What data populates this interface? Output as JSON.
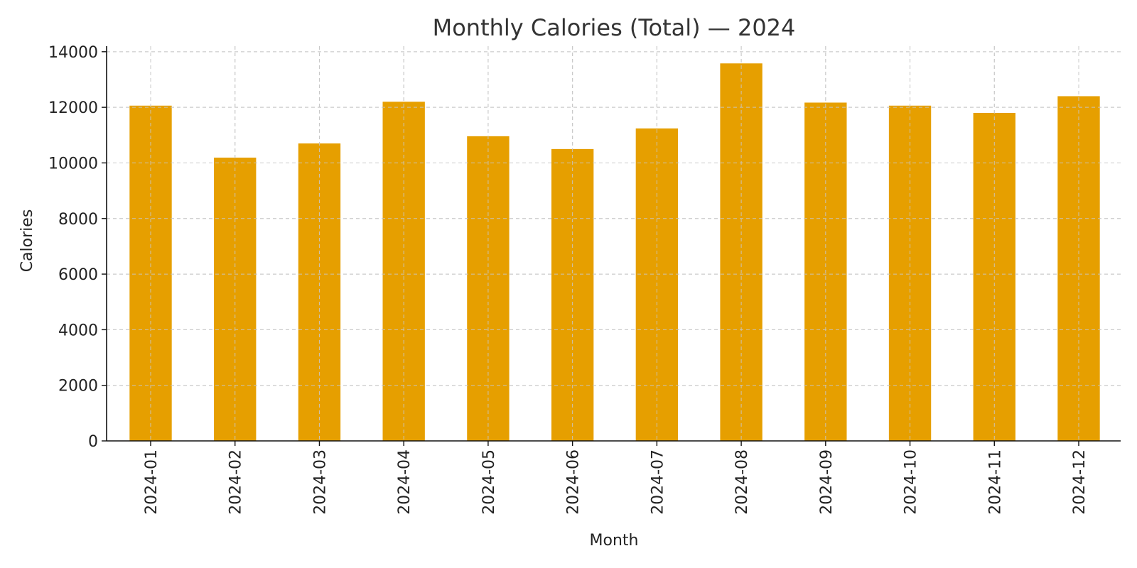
{
  "chart_data": {
    "type": "bar",
    "title": "Monthly Calories (Total) — 2024",
    "xlabel": "Month",
    "ylabel": "Calories",
    "categories": [
      "2024-01",
      "2024-02",
      "2024-03",
      "2024-04",
      "2024-05",
      "2024-06",
      "2024-07",
      "2024-08",
      "2024-09",
      "2024-10",
      "2024-11",
      "2024-12"
    ],
    "values": [
      12060,
      10190,
      10700,
      12200,
      10960,
      10500,
      11240,
      13580,
      12170,
      12060,
      11800,
      12400
    ],
    "ylim": [
      0,
      14200
    ],
    "yticks": [
      0,
      2000,
      4000,
      6000,
      8000,
      10000,
      12000,
      14000
    ],
    "grid": true,
    "bar_color": "#E69F00",
    "legend": "none"
  }
}
